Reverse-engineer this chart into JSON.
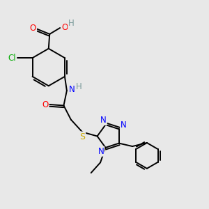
{
  "bg_color": "#e8e8e8",
  "atom_colors": {
    "C": "#000000",
    "H": "#7a9a9a",
    "O": "#ff0000",
    "N": "#0000ff",
    "S": "#ccaa00",
    "Cl": "#00aa00"
  },
  "bond_color": "#000000",
  "figsize": [
    3.0,
    3.0
  ],
  "dpi": 100,
  "xlim": [
    0,
    10
  ],
  "ylim": [
    0,
    10
  ]
}
